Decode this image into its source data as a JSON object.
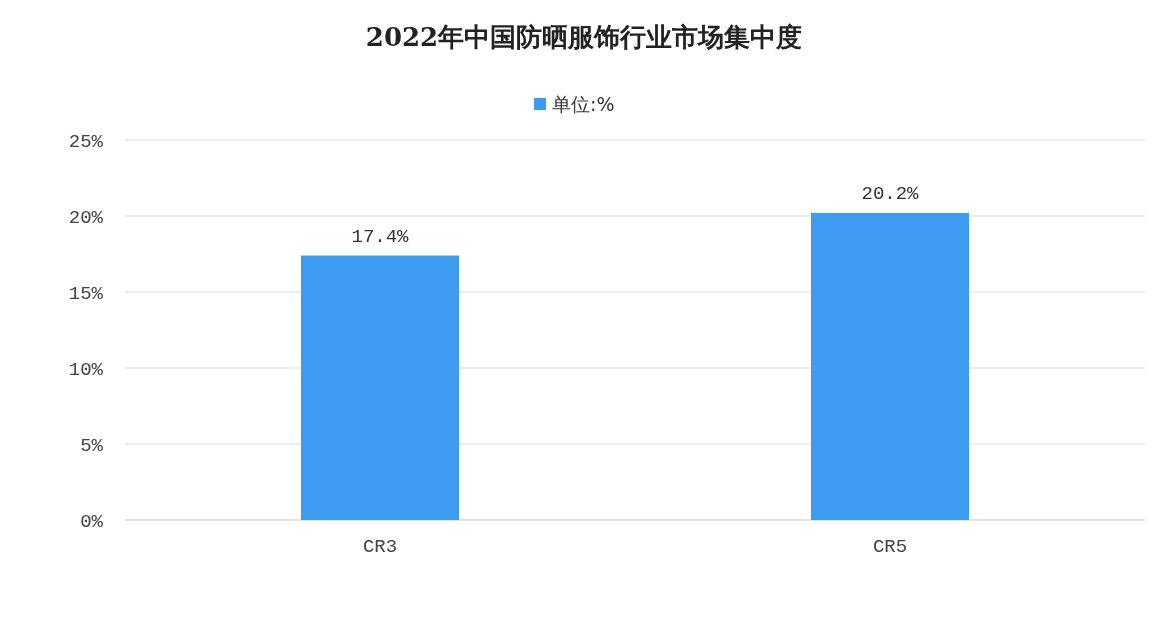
{
  "chart_data": {
    "type": "bar",
    "title": "2022年中国防晒服饰行业市场集中度",
    "categories": [
      "CR3",
      "CR5"
    ],
    "series": [
      {
        "name": "单位:%",
        "color": "#3d9cf0",
        "values": [
          17.4,
          20.2
        ],
        "value_labels": [
          "17.4%",
          "20.2%"
        ]
      }
    ],
    "ylim": [
      0,
      25
    ],
    "yticks": [
      {
        "value": 0,
        "label": "0%"
      },
      {
        "value": 5,
        "label": "5%"
      },
      {
        "value": 10,
        "label": "10%"
      },
      {
        "value": 15,
        "label": "15%"
      },
      {
        "value": 20,
        "label": "20%"
      },
      {
        "value": 25,
        "label": "25%"
      }
    ],
    "grid": "y",
    "legend": "top"
  }
}
